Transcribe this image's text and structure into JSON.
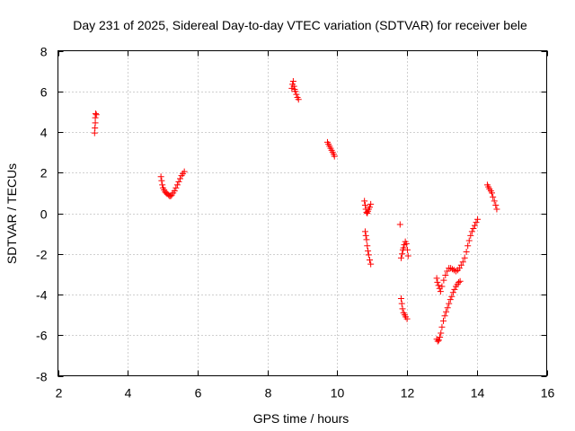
{
  "colors": {
    "series": "#ff0000",
    "frame": "#000000",
    "grid": "#a0a0a0"
  },
  "chart_data": {
    "type": "scatter",
    "title": "Day 231 of 2025, Sidereal Day-to-day VTEC variation (SDTVAR) for receiver bele",
    "xlabel": "GPS time / hours",
    "ylabel": "SDTVAR / TECUs",
    "xlim": [
      2,
      16
    ],
    "ylim": [
      -8,
      8
    ],
    "xticks": [
      2,
      4,
      6,
      8,
      10,
      12,
      14,
      16
    ],
    "yticks": [
      -8,
      -6,
      -4,
      -2,
      0,
      2,
      4,
      6,
      8
    ],
    "grid": true,
    "marker": "plus",
    "series": [
      {
        "name": "SDTVAR",
        "points": [
          [
            3.05,
            3.95
          ],
          [
            3.06,
            4.2
          ],
          [
            3.07,
            4.45
          ],
          [
            3.07,
            4.7
          ],
          [
            3.08,
            4.9
          ],
          [
            3.1,
            4.85
          ],
          [
            4.95,
            1.8
          ],
          [
            4.97,
            1.6
          ],
          [
            4.99,
            1.4
          ],
          [
            5.01,
            1.25
          ],
          [
            5.04,
            1.15
          ],
          [
            5.07,
            1.05
          ],
          [
            5.1,
            1.0
          ],
          [
            5.13,
            0.95
          ],
          [
            5.17,
            0.9
          ],
          [
            5.2,
            0.85
          ],
          [
            5.23,
            0.85
          ],
          [
            5.26,
            0.9
          ],
          [
            5.3,
            1.0
          ],
          [
            5.34,
            1.1
          ],
          [
            5.38,
            1.25
          ],
          [
            5.42,
            1.4
          ],
          [
            5.46,
            1.55
          ],
          [
            5.5,
            1.7
          ],
          [
            5.54,
            1.85
          ],
          [
            5.58,
            1.95
          ],
          [
            5.62,
            2.05
          ],
          [
            8.7,
            6.15
          ],
          [
            8.72,
            6.35
          ],
          [
            8.74,
            6.5
          ],
          [
            8.76,
            6.25
          ],
          [
            8.78,
            6.1
          ],
          [
            8.8,
            6.0
          ],
          [
            8.83,
            5.85
          ],
          [
            8.86,
            5.7
          ],
          [
            8.89,
            5.6
          ],
          [
            9.72,
            3.5
          ],
          [
            9.75,
            3.4
          ],
          [
            9.78,
            3.3
          ],
          [
            9.81,
            3.2
          ],
          [
            9.84,
            3.1
          ],
          [
            9.87,
            3.0
          ],
          [
            9.9,
            2.9
          ],
          [
            9.92,
            2.8
          ],
          [
            10.78,
            0.6
          ],
          [
            10.8,
            0.4
          ],
          [
            10.82,
            0.2
          ],
          [
            10.84,
            0.05
          ],
          [
            10.86,
            0.0
          ],
          [
            10.88,
            0.1
          ],
          [
            10.9,
            0.2
          ],
          [
            10.93,
            0.3
          ],
          [
            10.96,
            0.45
          ],
          [
            10.8,
            -0.9
          ],
          [
            10.82,
            -1.1
          ],
          [
            10.84,
            -1.3
          ],
          [
            10.86,
            -1.6
          ],
          [
            10.88,
            -1.85
          ],
          [
            10.9,
            -2.05
          ],
          [
            10.93,
            -2.3
          ],
          [
            10.96,
            -2.5
          ],
          [
            11.8,
            -0.55
          ],
          [
            11.83,
            -2.2
          ],
          [
            11.86,
            -2.0
          ],
          [
            11.88,
            -1.8
          ],
          [
            11.9,
            -1.7
          ],
          [
            11.92,
            -1.55
          ],
          [
            11.95,
            -1.4
          ],
          [
            11.98,
            -1.5
          ],
          [
            12.01,
            -1.8
          ],
          [
            12.03,
            -2.1
          ],
          [
            11.83,
            -4.2
          ],
          [
            11.85,
            -4.45
          ],
          [
            11.87,
            -4.7
          ],
          [
            11.9,
            -4.9
          ],
          [
            11.93,
            -5.0
          ],
          [
            11.96,
            -5.1
          ],
          [
            12.0,
            -5.2
          ],
          [
            12.85,
            -3.2
          ],
          [
            12.87,
            -3.4
          ],
          [
            12.9,
            -3.55
          ],
          [
            12.93,
            -3.7
          ],
          [
            12.96,
            -3.85
          ],
          [
            13.0,
            -3.6
          ],
          [
            13.05,
            -3.3
          ],
          [
            13.1,
            -3.05
          ],
          [
            13.15,
            -2.85
          ],
          [
            13.2,
            -2.7
          ],
          [
            13.25,
            -2.7
          ],
          [
            13.3,
            -2.75
          ],
          [
            13.35,
            -2.8
          ],
          [
            13.4,
            -2.85
          ],
          [
            13.45,
            -2.8
          ],
          [
            13.5,
            -2.7
          ],
          [
            13.55,
            -2.55
          ],
          [
            13.6,
            -2.4
          ],
          [
            13.65,
            -2.2
          ],
          [
            13.7,
            -1.9
          ],
          [
            13.74,
            -1.6
          ],
          [
            13.78,
            -1.35
          ],
          [
            13.82,
            -1.1
          ],
          [
            13.86,
            -0.9
          ],
          [
            13.9,
            -0.75
          ],
          [
            13.94,
            -0.6
          ],
          [
            13.98,
            -0.45
          ],
          [
            14.02,
            -0.3
          ],
          [
            12.85,
            -6.2
          ],
          [
            12.88,
            -6.3
          ],
          [
            12.91,
            -6.25
          ],
          [
            12.94,
            -6.1
          ],
          [
            12.97,
            -5.9
          ],
          [
            13.0,
            -5.6
          ],
          [
            13.04,
            -5.3
          ],
          [
            13.08,
            -5.05
          ],
          [
            13.12,
            -4.85
          ],
          [
            13.16,
            -4.65
          ],
          [
            13.2,
            -4.45
          ],
          [
            13.24,
            -4.25
          ],
          [
            13.28,
            -4.1
          ],
          [
            13.32,
            -3.9
          ],
          [
            13.36,
            -3.75
          ],
          [
            13.4,
            -3.6
          ],
          [
            13.44,
            -3.5
          ],
          [
            13.48,
            -3.4
          ],
          [
            13.52,
            -3.35
          ],
          [
            14.3,
            1.4
          ],
          [
            14.33,
            1.3
          ],
          [
            14.36,
            1.2
          ],
          [
            14.4,
            1.1
          ],
          [
            14.43,
            1.0
          ],
          [
            14.46,
            0.8
          ],
          [
            14.5,
            0.6
          ],
          [
            14.54,
            0.4
          ],
          [
            14.57,
            0.2
          ]
        ]
      }
    ]
  }
}
